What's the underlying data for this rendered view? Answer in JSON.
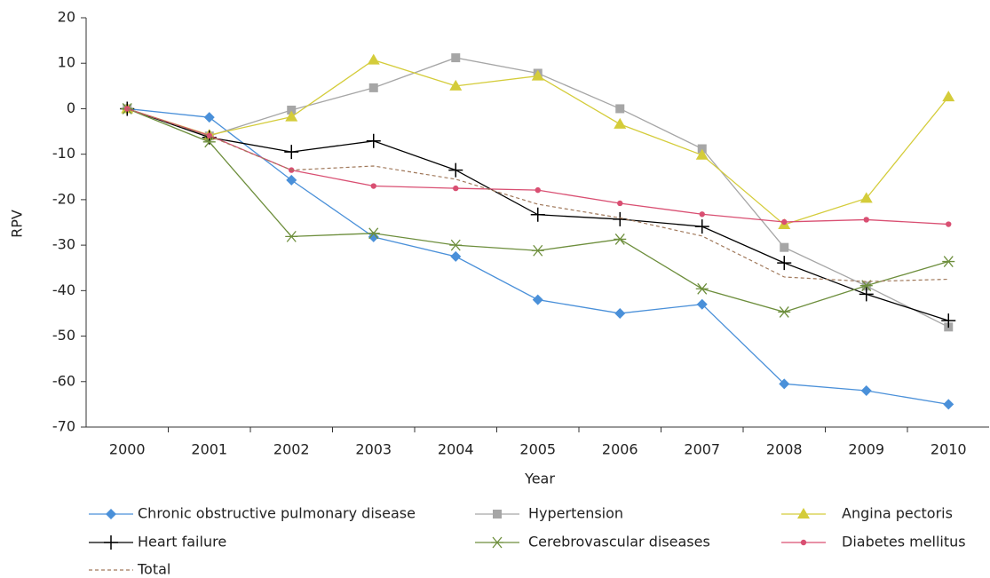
{
  "chart_data": {
    "type": "line",
    "x_label": "Year",
    "y_label": "RPV",
    "categories": [
      "2000",
      "2001",
      "2002",
      "2003",
      "2004",
      "2005",
      "2006",
      "2007",
      "2008",
      "2009",
      "2010"
    ],
    "ylim": [
      -70,
      20
    ],
    "yticks": [
      -70,
      -60,
      -50,
      -40,
      -30,
      -20,
      -10,
      0,
      10,
      20
    ],
    "legend": "bottom",
    "series": [
      {
        "name": "Chronic obstructive pulmonary disease",
        "color": "#4a90d9",
        "marker": "diamond",
        "values": [
          0,
          -1.9,
          -15.7,
          -28.2,
          -32.5,
          -42,
          -45,
          -43,
          -60.5,
          -62,
          -65
        ]
      },
      {
        "name": "Hypertension",
        "color": "#a6a6a6",
        "marker": "square",
        "values": [
          0,
          -6,
          -0.3,
          4.6,
          11.2,
          7.8,
          0,
          -8.8,
          -30.5,
          -39,
          -48
        ]
      },
      {
        "name": "Angina pectoris",
        "color": "#d4cc3a",
        "marker": "triangle",
        "values": [
          0,
          -5.8,
          -1.8,
          10.7,
          5,
          7.2,
          -3.4,
          -10.2,
          -25.5,
          -19.7,
          2.6
        ]
      },
      {
        "name": "Heart failure",
        "color": "#000000",
        "marker": "plus",
        "values": [
          0,
          -6.3,
          -9.5,
          -7.1,
          -13.5,
          -23.3,
          -24.3,
          -25.9,
          -33.9,
          -40.8,
          -46.6
        ]
      },
      {
        "name": "Cerebrovascular diseases",
        "color": "#6d8e3c",
        "marker": "asterisk",
        "values": [
          0,
          -7.3,
          -28.1,
          -27.4,
          -30,
          -31.2,
          -28.7,
          -39.6,
          -44.7,
          -38.9,
          -33.6
        ]
      },
      {
        "name": "Diabetes mellitus",
        "color": "#d94f72",
        "marker": "circle",
        "values": [
          0,
          -5.9,
          -13.5,
          -17,
          -17.5,
          -17.9,
          -20.8,
          -23.2,
          -24.9,
          -24.4,
          -25.4
        ]
      },
      {
        "name": "Total",
        "color": "#a0785a",
        "marker": "none",
        "dash": true,
        "values": [
          0,
          -6,
          -13.5,
          -12.6,
          -15.5,
          -21,
          -24,
          -28,
          -37,
          -38,
          -37.5
        ]
      }
    ]
  }
}
